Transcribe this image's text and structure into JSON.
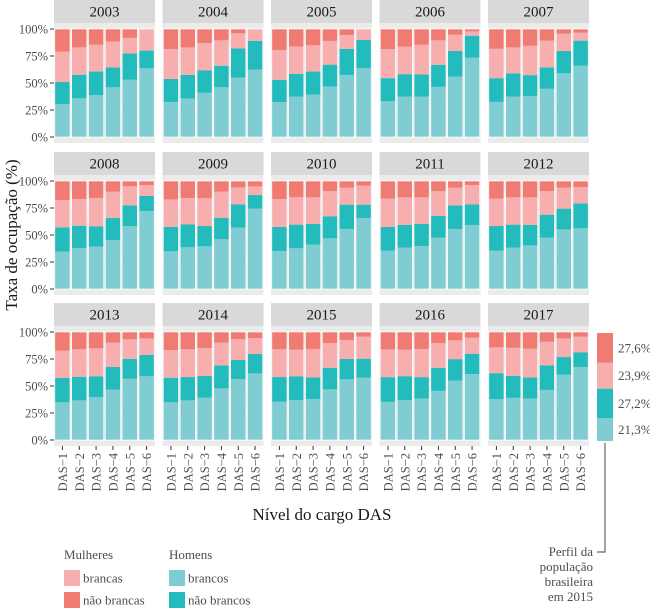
{
  "chart_data": {
    "type": "bar",
    "stacked": true,
    "faceted": true,
    "title": "",
    "xlabel": "Nível do cargo DAS",
    "ylabel": "Taxa de ocupação (%)",
    "ylim": [
      0,
      100
    ],
    "yticks": [
      "0%",
      "25%",
      "50%",
      "75%",
      "100%"
    ],
    "ytick_values": [
      0,
      25,
      50,
      75,
      100
    ],
    "categories": [
      "DAS−1",
      "DAS−2",
      "DAS−3",
      "DAS−4",
      "DAS−5",
      "DAS−6"
    ],
    "grid": true,
    "series_order_bottom_to_top": [
      "homens_brancos",
      "homens_nao_brancos",
      "mulheres_brancas",
      "mulheres_nao_brancas"
    ],
    "colors": {
      "homens_brancos": "#7FCDD2",
      "homens_nao_brancos": "#24BBBD",
      "mulheres_brancas": "#F6AFAE",
      "mulheres_nao_brancas": "#F07B72"
    },
    "panels": [
      {
        "year": "2003",
        "values": [
          [
            30.6,
            20.3,
            28.1,
            21.0
          ],
          [
            35.8,
            21.8,
            25.4,
            17.0
          ],
          [
            38.8,
            21.8,
            24.9,
            14.5
          ],
          [
            46.0,
            18.5,
            24.0,
            11.5
          ],
          [
            53.0,
            24.3,
            14.5,
            8.2
          ],
          [
            63.6,
            16.4,
            20.0,
            0.0
          ]
        ]
      },
      {
        "year": "2004",
        "values": [
          [
            32.3,
            21.5,
            27.7,
            18.5
          ],
          [
            35.7,
            21.8,
            25.5,
            17.0
          ],
          [
            40.9,
            20.9,
            25.2,
            13.0
          ],
          [
            46.0,
            20.0,
            23.5,
            10.5
          ],
          [
            55.0,
            27.0,
            14.0,
            4.0
          ],
          [
            62.5,
            26.5,
            11.0,
            0.0
          ]
        ]
      },
      {
        "year": "2005",
        "values": [
          [
            32.3,
            20.7,
            27.6,
            19.4
          ],
          [
            37.5,
            21.0,
            25.2,
            16.3
          ],
          [
            39.4,
            21.2,
            24.4,
            15.0
          ],
          [
            46.8,
            20.2,
            22.0,
            11.0
          ],
          [
            57.5,
            24.0,
            13.0,
            5.5
          ],
          [
            63.7,
            26.3,
            10.0,
            0.0
          ]
        ]
      },
      {
        "year": "2006",
        "values": [
          [
            33.1,
            21.4,
            26.9,
            18.6
          ],
          [
            37.5,
            20.7,
            25.4,
            16.4
          ],
          [
            37.5,
            20.4,
            27.5,
            14.6
          ],
          [
            46.4,
            20.5,
            22.6,
            10.5
          ],
          [
            56.0,
            23.6,
            15.1,
            5.3
          ],
          [
            73.4,
            20.4,
            4.0,
            2.2
          ]
        ]
      },
      {
        "year": "2007",
        "values": [
          [
            32.5,
            22.0,
            27.2,
            18.3
          ],
          [
            37.5,
            21.5,
            24.0,
            17.0
          ],
          [
            38.0,
            19.3,
            27.2,
            15.5
          ],
          [
            44.6,
            19.8,
            24.8,
            10.8
          ],
          [
            59.0,
            20.6,
            16.1,
            4.3
          ],
          [
            66.0,
            23.2,
            7.4,
            3.4
          ]
        ]
      },
      {
        "year": "2008",
        "values": [
          [
            34.6,
            22.5,
            25.3,
            17.6
          ],
          [
            38.0,
            20.6,
            24.7,
            16.7
          ],
          [
            39.2,
            18.8,
            26.3,
            15.7
          ],
          [
            45.4,
            20.3,
            24.4,
            9.9
          ],
          [
            58.3,
            19.2,
            17.6,
            4.9
          ],
          [
            72.2,
            13.9,
            10.2,
            3.7
          ]
        ]
      },
      {
        "year": "2009",
        "values": [
          [
            34.9,
            22.5,
            25.6,
            17.0
          ],
          [
            38.6,
            21.3,
            24.4,
            15.7
          ],
          [
            39.5,
            18.8,
            25.7,
            16.0
          ],
          [
            46.0,
            20.0,
            24.1,
            9.9
          ],
          [
            56.8,
            21.6,
            15.7,
            5.9
          ],
          [
            74.4,
            12.6,
            8.0,
            5.0
          ]
        ]
      },
      {
        "year": "2010",
        "values": [
          [
            35.2,
            22.2,
            25.9,
            16.7
          ],
          [
            37.7,
            21.9,
            25.3,
            15.1
          ],
          [
            41.0,
            19.2,
            24.7,
            15.1
          ],
          [
            46.9,
            20.4,
            23.4,
            9.3
          ],
          [
            55.6,
            22.5,
            15.7,
            6.2
          ],
          [
            65.7,
            12.4,
            17.6,
            4.3
          ]
        ]
      },
      {
        "year": "2011",
        "values": [
          [
            35.5,
            21.9,
            26.2,
            16.4
          ],
          [
            38.3,
            21.0,
            25.6,
            15.1
          ],
          [
            39.8,
            20.4,
            24.7,
            15.1
          ],
          [
            47.5,
            20.1,
            23.1,
            9.3
          ],
          [
            55.6,
            21.9,
            16.3,
            6.2
          ],
          [
            59.3,
            19.1,
            17.9,
            3.7
          ]
        ]
      },
      {
        "year": "2012",
        "values": [
          [
            35.5,
            22.8,
            25.3,
            16.4
          ],
          [
            38.3,
            21.3,
            25.3,
            15.1
          ],
          [
            40.4,
            18.9,
            25.6,
            15.1
          ],
          [
            47.5,
            21.3,
            21.9,
            9.3
          ],
          [
            55.2,
            19.2,
            19.4,
            6.2
          ],
          [
            56.2,
            23.1,
            15.1,
            5.6
          ]
        ]
      },
      {
        "year": "2013",
        "values": [
          [
            34.9,
            22.5,
            25.3,
            17.3
          ],
          [
            36.7,
            21.9,
            25.4,
            16.0
          ],
          [
            39.8,
            19.2,
            25.9,
            15.1
          ],
          [
            46.6,
            21.0,
            22.5,
            9.9
          ],
          [
            56.8,
            18.2,
            18.2,
            6.8
          ],
          [
            59.0,
            19.7,
            15.4,
            5.9
          ]
        ]
      },
      {
        "year": "2014",
        "values": [
          [
            34.9,
            22.8,
            25.6,
            16.7
          ],
          [
            36.7,
            21.6,
            25.7,
            16.0
          ],
          [
            39.2,
            20.1,
            25.9,
            14.8
          ],
          [
            47.8,
            21.3,
            21.0,
            9.9
          ],
          [
            56.5,
            17.6,
            19.4,
            6.5
          ],
          [
            61.7,
            17.9,
            14.8,
            5.6
          ]
        ]
      },
      {
        "year": "2015",
        "values": [
          [
            35.5,
            22.8,
            25.7,
            16.0
          ],
          [
            37.0,
            22.0,
            24.6,
            16.4
          ],
          [
            38.0,
            20.0,
            26.3,
            15.7
          ],
          [
            46.9,
            20.0,
            22.9,
            10.2
          ],
          [
            56.2,
            18.8,
            17.6,
            7.4
          ],
          [
            57.7,
            17.6,
            20.4,
            4.3
          ]
        ]
      },
      {
        "year": "2016",
        "values": [
          [
            35.3,
            22.9,
            25.7,
            16.1
          ],
          [
            36.8,
            22.3,
            24.5,
            16.4
          ],
          [
            38.4,
            19.8,
            26.0,
            15.8
          ],
          [
            45.5,
            21.4,
            22.9,
            10.2
          ],
          [
            55.1,
            19.8,
            17.4,
            7.7
          ],
          [
            61.0,
            18.9,
            14.8,
            5.3
          ]
        ]
      },
      {
        "year": "2017",
        "values": [
          [
            37.8,
            24.1,
            23.9,
            14.2
          ],
          [
            39.0,
            20.4,
            26.0,
            14.6
          ],
          [
            38.4,
            19.5,
            26.6,
            15.5
          ],
          [
            46.4,
            22.6,
            22.0,
            9.0
          ],
          [
            60.4,
            16.4,
            17.3,
            5.9
          ],
          [
            67.5,
            13.6,
            14.6,
            4.3
          ]
        ]
      }
    ],
    "profile": {
      "label_lines": [
        "Perfil da",
        "população",
        "brasileira",
        "em 2015"
      ],
      "values": [
        21.3,
        27.2,
        23.9,
        27.6
      ],
      "labels": [
        "21,3%",
        "27,2%",
        "23,9%",
        "27,6%"
      ]
    },
    "legend": {
      "placement": "bottom-left",
      "groups": [
        {
          "title": "Mulheres",
          "items": [
            {
              "label": "brancas",
              "key": "mulheres_brancas"
            },
            {
              "label": "não brancas",
              "key": "mulheres_nao_brancas"
            }
          ]
        },
        {
          "title": "Homens",
          "items": [
            {
              "label": "brancos",
              "key": "homens_brancos"
            },
            {
              "label": "não brancos",
              "key": "homens_nao_brancos"
            }
          ]
        }
      ]
    }
  }
}
